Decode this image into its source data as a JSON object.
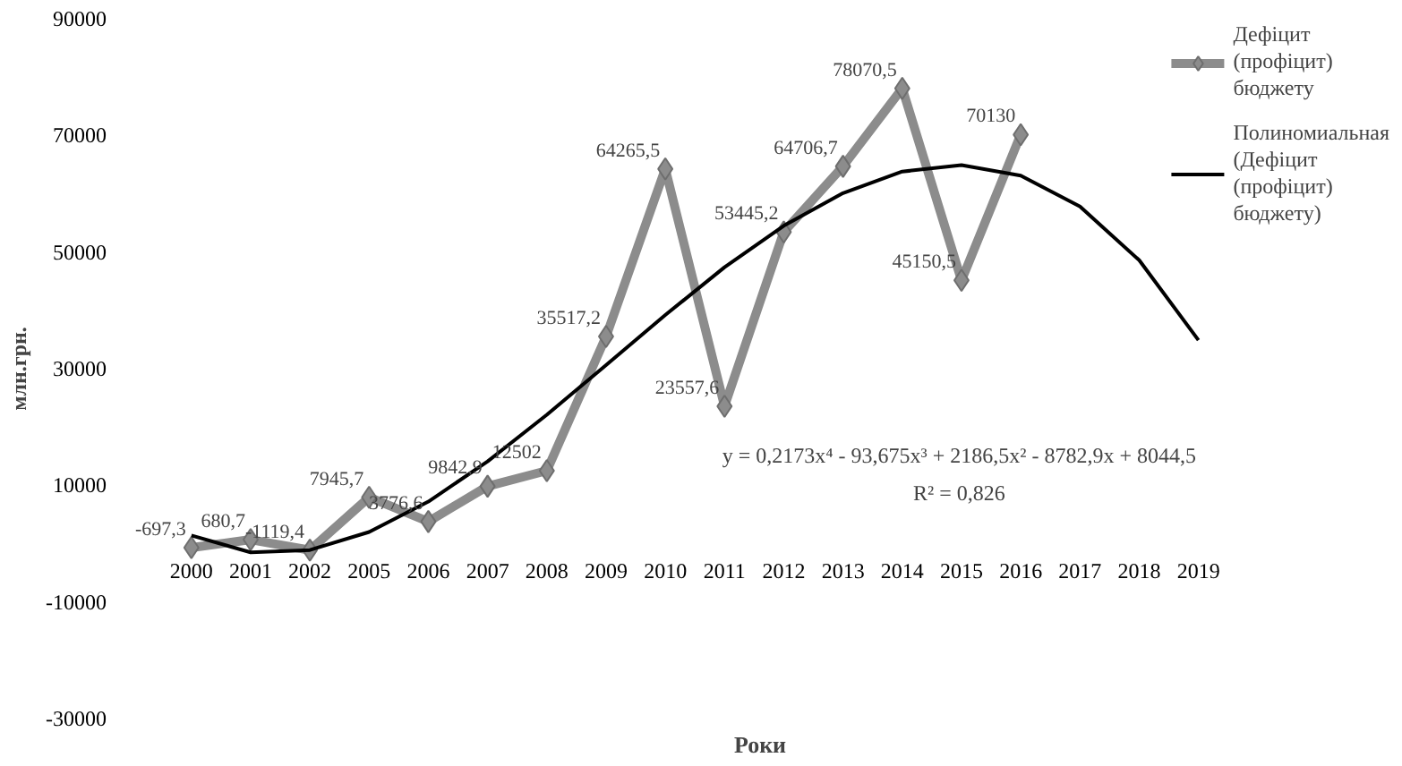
{
  "chart_data": {
    "type": "line",
    "xlabel": "Роки",
    "ylabel": "млн.грн.",
    "categories": [
      "2000",
      "2001",
      "2002",
      "2005",
      "2006",
      "2007",
      "2008",
      "2009",
      "2010",
      "2011",
      "2012",
      "2013",
      "2014",
      "2015",
      "2016",
      "2017",
      "2018",
      "2019"
    ],
    "series": [
      {
        "name": "Дефіцит (профіцит) бюджету",
        "color": "#8c8c8c",
        "marker": "diamond",
        "values": [
          -697.3,
          680.7,
          -1119.4,
          7945.7,
          3776.6,
          9842.9,
          12502,
          35517.2,
          64265.5,
          23557.6,
          53445.2,
          64706.7,
          78070.5,
          45150.5,
          70130,
          null,
          null,
          null
        ],
        "value_labels": [
          "-697,3",
          "680,7",
          "-1119,4",
          "7945,7",
          "3776,6",
          "9842,9",
          "12502",
          "35517,2",
          "64265,5",
          "23557,6",
          "53445,2",
          "64706,7",
          "78070,5",
          "45150,5",
          "70130",
          null,
          null,
          null
        ]
      },
      {
        "name": "Полиномиальная (Дефіцит (профіцит) бюджету)",
        "color": "#000000",
        "type": "line",
        "marker": "none",
        "values": [
          1400,
          -1500,
          -1100,
          2000,
          7200,
          14100,
          22100,
          30600,
          39200,
          47400,
          54500,
          60100,
          63800,
          64900,
          63100,
          57800,
          48600,
          34900
        ]
      }
    ],
    "ylim": [
      -30000,
      90000
    ],
    "yticks": [
      -30000,
      -10000,
      10000,
      30000,
      50000,
      70000,
      90000
    ],
    "annotations": [
      "y = 0,2173x⁴ - 93,675x³ + 2186,5x² - 8782,9x + 8044,5",
      "R² = 0,826"
    ],
    "grid": false,
    "legend": "top right"
  }
}
